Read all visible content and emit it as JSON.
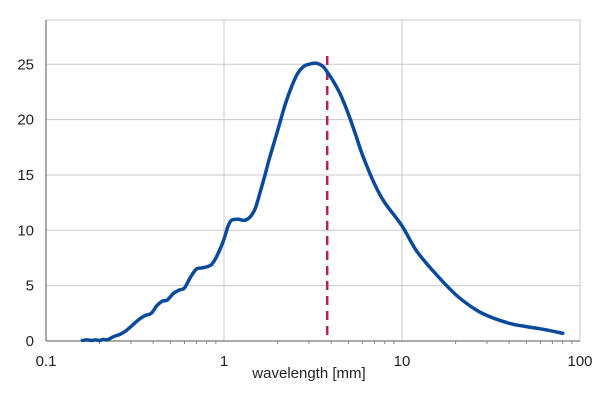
{
  "chart_data": {
    "type": "line",
    "title": "",
    "xlabel": "wavelength [mm]",
    "ylabel": "",
    "x_scale": "log",
    "xlim": [
      0.1,
      100
    ],
    "ylim": [
      0,
      29
    ],
    "x_ticks": [
      0.1,
      1,
      10,
      100
    ],
    "x_tick_labels": [
      "0.1",
      "1",
      "10",
      "100"
    ],
    "y_ticks": [
      0,
      5,
      10,
      15,
      20,
      25
    ],
    "y_tick_labels": [
      "0",
      "5",
      "10",
      "15",
      "20",
      "25"
    ],
    "grid": true,
    "legend": "none",
    "series": [
      {
        "color": "#0b4a9b",
        "x": [
          0.16,
          0.17,
          0.18,
          0.19,
          0.2,
          0.21,
          0.22,
          0.24,
          0.26,
          0.28,
          0.3,
          0.33,
          0.36,
          0.39,
          0.42,
          0.45,
          0.48,
          0.52,
          0.56,
          0.6,
          0.65,
          0.7,
          0.75,
          0.8,
          0.85,
          0.9,
          0.95,
          1.0,
          1.05,
          1.1,
          1.2,
          1.3,
          1.4,
          1.5,
          1.6,
          1.7,
          1.8,
          2.0,
          2.2,
          2.4,
          2.6,
          2.8,
          3.0,
          3.3,
          3.6,
          3.8,
          4.1,
          4.5,
          5.0,
          5.5,
          6.0,
          7.0,
          8.0,
          10.0,
          12.0,
          15.0,
          20.0,
          25.0,
          30.0,
          40.0,
          50.0,
          60.0,
          80.0
        ],
        "y": [
          0.05,
          0.1,
          0.05,
          0.1,
          0.05,
          0.15,
          0.1,
          0.4,
          0.6,
          0.9,
          1.3,
          1.9,
          2.3,
          2.5,
          3.2,
          3.6,
          3.7,
          4.3,
          4.6,
          4.8,
          5.8,
          6.5,
          6.6,
          6.7,
          6.9,
          7.5,
          8.3,
          9.2,
          10.3,
          10.9,
          11.0,
          10.9,
          11.2,
          12.0,
          13.5,
          15.0,
          16.5,
          19.0,
          21.3,
          23.0,
          24.2,
          24.8,
          25.0,
          25.1,
          24.8,
          24.3,
          23.5,
          22.3,
          20.5,
          18.6,
          16.8,
          14.2,
          12.5,
          10.4,
          8.2,
          6.3,
          4.2,
          3.0,
          2.3,
          1.6,
          1.3,
          1.1,
          0.7
        ]
      }
    ],
    "reference_line": {
      "x": 3.8,
      "orientation": "vertical",
      "style": "dashed",
      "color": "#b0225a"
    }
  }
}
